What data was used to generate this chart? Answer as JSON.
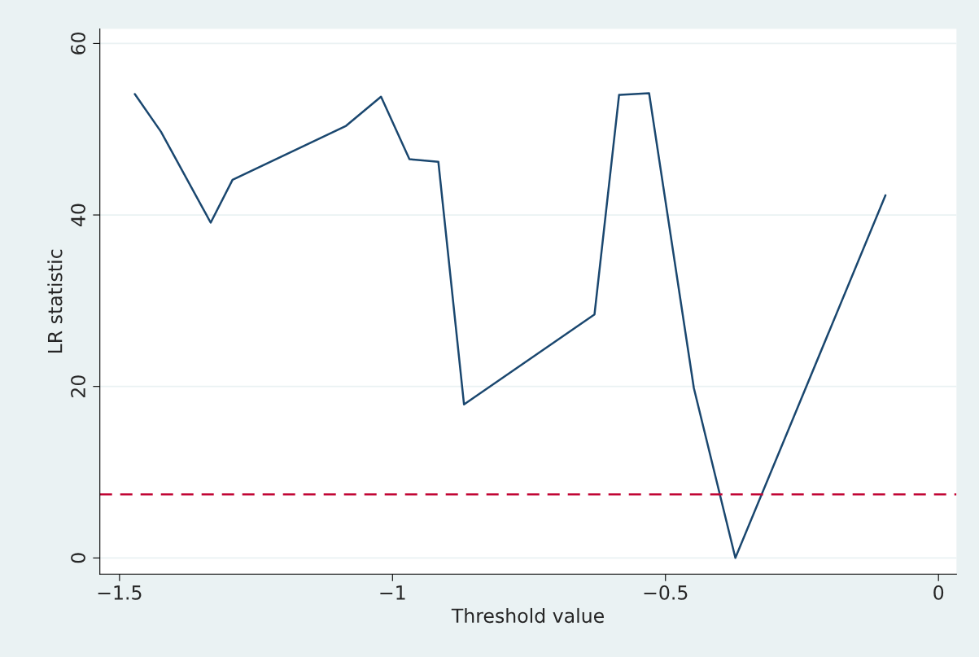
{
  "chart_data": {
    "type": "line",
    "xlabel": "Threshold value",
    "ylabel": "LR statistic",
    "x": [
      -1.472,
      -1.424,
      -1.333,
      -1.293,
      -1.085,
      -1.021,
      -0.969,
      -0.916,
      -0.869,
      -0.63,
      -0.585,
      -0.53,
      -0.448,
      -0.372,
      -0.097
    ],
    "series": [
      {
        "color": "#1a476f",
        "values": [
          54.1,
          49.7,
          39.1,
          44.1,
          50.4,
          53.8,
          46.5,
          46.2,
          17.9,
          28.4,
          54.0,
          54.2,
          19.8,
          0,
          42.3
        ]
      }
    ],
    "xlim": [
      -1.536,
      0.033
    ],
    "ylim": [
      -1.9,
      61.7
    ],
    "xticks": [
      {
        "value": -1.5,
        "label": "−1.5"
      },
      {
        "value": -1,
        "label": "−1"
      },
      {
        "value": -0.5,
        "label": "−0.5"
      },
      0
    ],
    "yticks": [
      0,
      20,
      40,
      60
    ],
    "grid": "y",
    "legend": false,
    "ref_lines": [
      {
        "axis": "y",
        "value": 7.4,
        "color": "#c10534",
        "line_style": "dashed"
      }
    ]
  }
}
